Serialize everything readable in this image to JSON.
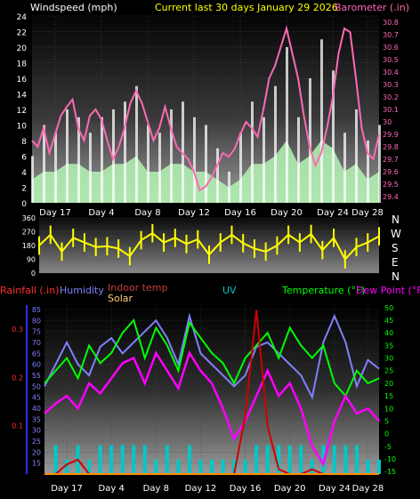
{
  "panels": {
    "wind": {
      "header_left": "Windspeed (mph)",
      "header_center": "Current last 30 days January 29 2026",
      "header_right": "Barometer (.in)",
      "colors": {
        "left": "#ffffff",
        "center": "#ffff00",
        "right": "#ff69b4",
        "gust": "#ffffff",
        "avg": "#b4f5b4",
        "baro": "#ff69b4"
      }
    },
    "direction": {
      "compass": [
        "N",
        "W",
        "S",
        "E",
        "N"
      ],
      "color": "#ffff00"
    },
    "multi": {
      "header_rain": "Rainfall (.in)",
      "header_humidity": "Humidity",
      "header_indoor": "Indoor temp",
      "header_solar": "Solar",
      "header_uv": "UV",
      "header_temp": "Temperature (°F)",
      "header_dew": "Dew Point (°F)",
      "colors": {
        "rain": "#ff3030",
        "humidity": "#8080ff",
        "indoor": "#c83c3c",
        "solar": "#ffd080",
        "uv": "#00c8c8",
        "temp": "#00ff00",
        "dew": "#ff00ff",
        "rainline": "#d00000"
      }
    }
  },
  "chart_data": [
    {
      "type": "area",
      "title": "Current last 30 days January 29 2026",
      "ylabel": "Windspeed (mph)",
      "y2label": "Barometer (.in)",
      "x_ticks": [
        "Day 17",
        "Day 4",
        "Day 8",
        "Day 12",
        "Day 16",
        "Day 20",
        "Day 24",
        "Day 28"
      ],
      "xlim": [
        0,
        30
      ],
      "ylim": [
        0,
        24
      ],
      "yticks": [
        0,
        2,
        4,
        6,
        8,
        10,
        12,
        14,
        16,
        18,
        20,
        22,
        24
      ],
      "y2lim": [
        29.35,
        30.85
      ],
      "y2ticks": [
        29.4,
        29.5,
        29.6,
        29.7,
        29.8,
        29.9,
        30.0,
        30.1,
        30.2,
        30.3,
        30.4,
        30.5,
        30.6,
        30.7,
        30.8
      ],
      "y2tick_labels": [
        "29.4",
        "29.5",
        "29.6",
        "29.7",
        "29.8",
        "29.9",
        "30",
        "30.1",
        "30.2",
        "30.3",
        "30.4",
        "30.5",
        "30.6",
        "30.7",
        "30.8"
      ],
      "series": [
        {
          "name": "Gust",
          "x": [
            0,
            1,
            2,
            3,
            4,
            5,
            6,
            7,
            8,
            9,
            10,
            11,
            12,
            13,
            14,
            15,
            16,
            17,
            18,
            19,
            20,
            21,
            22,
            23,
            24,
            25,
            26,
            27,
            28,
            29,
            30
          ],
          "y": [
            6,
            10,
            9,
            12,
            11,
            9,
            11,
            12,
            13,
            15,
            10,
            9,
            12,
            13,
            11,
            10,
            7,
            4,
            9,
            13,
            11,
            15,
            20,
            11,
            16,
            21,
            17,
            9,
            12,
            8,
            10
          ]
        },
        {
          "name": "Average",
          "x": [
            0,
            1,
            2,
            3,
            4,
            5,
            6,
            7,
            8,
            9,
            10,
            11,
            12,
            13,
            14,
            15,
            16,
            17,
            18,
            19,
            20,
            21,
            22,
            23,
            24,
            25,
            26,
            27,
            28,
            29,
            30
          ],
          "y": [
            3,
            4,
            4,
            5,
            5,
            4,
            4,
            5,
            5,
            6,
            4,
            4,
            5,
            5,
            4,
            4,
            3,
            2,
            3,
            5,
            5,
            6,
            8,
            5,
            6,
            8,
            7,
            4,
            5,
            3,
            4
          ]
        },
        {
          "name": "Barometer",
          "x": [
            0,
            0.5,
            1,
            1.5,
            2,
            2.5,
            3,
            3.5,
            4,
            4.5,
            5,
            5.5,
            6,
            6.5,
            7,
            7.5,
            8,
            8.5,
            9,
            9.5,
            10,
            10.5,
            11,
            11.5,
            12,
            12.5,
            13,
            13.5,
            14,
            14.5,
            15,
            15.5,
            16,
            16.5,
            17,
            17.5,
            18,
            18.5,
            19,
            19.5,
            20,
            20.5,
            21,
            21.5,
            22,
            22.5,
            23,
            23.5,
            24,
            24.5,
            25,
            25.5,
            26,
            26.5,
            27,
            27.5,
            28,
            28.5,
            29,
            29.5,
            30
          ],
          "y": [
            29.85,
            29.8,
            29.95,
            29.75,
            29.9,
            30.05,
            30.12,
            30.18,
            29.95,
            29.85,
            30.05,
            30.1,
            30.02,
            29.85,
            29.7,
            29.8,
            29.95,
            30.15,
            30.25,
            30.15,
            30.0,
            29.85,
            29.95,
            30.12,
            29.95,
            29.8,
            29.75,
            29.7,
            29.6,
            29.45,
            29.48,
            29.55,
            29.65,
            29.75,
            29.72,
            29.78,
            29.9,
            30.0,
            29.95,
            29.88,
            30.1,
            30.35,
            30.45,
            30.6,
            30.75,
            30.55,
            30.35,
            30.05,
            29.8,
            29.65,
            29.75,
            29.95,
            30.2,
            30.55,
            30.75,
            30.72,
            30.35,
            29.95,
            29.75,
            29.7,
            29.9
          ]
        }
      ]
    },
    {
      "type": "line",
      "title": "",
      "ylabel": "",
      "ylim": [
        0,
        360
      ],
      "yticks": [
        0,
        90,
        180,
        270,
        360
      ],
      "ytick_labels": [
        "0",
        "90",
        "180",
        "270",
        "360"
      ],
      "xlim": [
        0,
        30
      ],
      "series": [
        {
          "name": "Wind direction",
          "x": [
            0,
            1,
            2,
            3,
            4,
            5,
            6,
            7,
            8,
            9,
            10,
            11,
            12,
            13,
            14,
            15,
            16,
            17,
            18,
            19,
            20,
            21,
            22,
            23,
            24,
            25,
            26,
            27,
            28,
            29,
            30
          ],
          "y": [
            180,
            250,
            140,
            230,
            200,
            170,
            175,
            160,
            110,
            215,
            260,
            200,
            230,
            190,
            220,
            120,
            200,
            250,
            195,
            160,
            140,
            180,
            250,
            200,
            255,
            150,
            230,
            90,
            170,
            200,
            240
          ]
        }
      ]
    },
    {
      "type": "line",
      "title": "",
      "xlabel": "",
      "x_ticks": [
        "Day 17",
        "Day 4",
        "Day 8",
        "Day 12",
        "Day 16",
        "Day 20",
        "Day 24",
        "Day 28"
      ],
      "xlim": [
        0,
        30
      ],
      "y_rain": {
        "ylim": [
          0,
          0.35
        ],
        "ticks": [
          0.1,
          0.2,
          0.3
        ],
        "tick_labels": [
          "0.1",
          "0.2",
          "0.3"
        ]
      },
      "y_humidity": {
        "ylim": [
          10,
          87
        ],
        "ticks": [
          15,
          20,
          25,
          30,
          35,
          40,
          45,
          50,
          55,
          60,
          65,
          70,
          75,
          80,
          85
        ]
      },
      "y_temp": {
        "ylim": [
          -16,
          51
        ],
        "ticks": [
          -15,
          -10,
          -5,
          0,
          5,
          10,
          15,
          20,
          25,
          30,
          35,
          40,
          45,
          50
        ]
      },
      "series": [
        {
          "name": "Rainfall",
          "x": [
            0,
            1,
            2,
            3,
            4,
            5,
            6,
            7,
            8,
            9,
            10,
            11,
            12,
            13,
            14,
            15,
            16,
            17,
            18,
            19,
            20,
            21,
            22,
            23,
            24,
            25,
            26,
            27,
            28,
            29,
            30
          ],
          "y": [
            0,
            0,
            0.02,
            0.03,
            0,
            0,
            0,
            0,
            0,
            0,
            0,
            0,
            0,
            0,
            0,
            0,
            0,
            0,
            0.12,
            0.34,
            0.1,
            0.01,
            0,
            0,
            0.01,
            0,
            0,
            0,
            0,
            0,
            0
          ]
        },
        {
          "name": "Humidity",
          "x": [
            0,
            1,
            2,
            3,
            4,
            5,
            6,
            7,
            8,
            9,
            10,
            11,
            12,
            13,
            14,
            15,
            16,
            17,
            18,
            19,
            20,
            21,
            22,
            23,
            24,
            25,
            26,
            27,
            28,
            29,
            30
          ],
          "y": [
            50,
            60,
            70,
            60,
            55,
            68,
            72,
            65,
            70,
            75,
            80,
            72,
            60,
            82,
            65,
            60,
            55,
            50,
            55,
            68,
            70,
            65,
            60,
            55,
            45,
            70,
            82,
            70,
            50,
            62,
            58
          ]
        },
        {
          "name": "Indoor temp",
          "x": [
            0,
            30
          ],
          "y": [
            null,
            null
          ]
        },
        {
          "name": "Solar",
          "x": [
            0,
            30
          ],
          "y": [
            null,
            null
          ]
        },
        {
          "name": "UV",
          "x": [
            0,
            1,
            2,
            3,
            4,
            5,
            6,
            7,
            8,
            9,
            10,
            11,
            12,
            13,
            14,
            15,
            16,
            17,
            18,
            19,
            20,
            21,
            22,
            23,
            24,
            25,
            26,
            27,
            28,
            29,
            30
          ],
          "y": [
            0,
            2,
            1,
            2,
            1,
            2,
            2,
            2,
            2,
            2,
            1,
            2,
            1,
            2,
            1,
            1,
            1,
            1,
            1,
            2,
            2,
            2,
            2,
            2,
            1,
            2,
            2,
            2,
            2,
            1,
            1
          ]
        },
        {
          "name": "Temperature",
          "x": [
            0,
            1,
            2,
            3,
            4,
            5,
            6,
            7,
            8,
            9,
            10,
            11,
            12,
            13,
            14,
            15,
            16,
            17,
            18,
            19,
            20,
            21,
            22,
            23,
            24,
            25,
            26,
            27,
            28,
            29,
            30
          ],
          "y": [
            20,
            25,
            30,
            22,
            35,
            28,
            32,
            40,
            45,
            30,
            42,
            35,
            25,
            44,
            38,
            32,
            28,
            20,
            30,
            35,
            40,
            30,
            42,
            35,
            30,
            35,
            20,
            15,
            25,
            20,
            22
          ]
        },
        {
          "name": "Dew Point",
          "x": [
            0,
            1,
            2,
            3,
            4,
            5,
            6,
            7,
            8,
            9,
            10,
            11,
            12,
            13,
            14,
            15,
            16,
            17,
            18,
            19,
            20,
            21,
            22,
            23,
            24,
            25,
            26,
            27,
            28,
            29,
            30
          ],
          "y": [
            8,
            12,
            15,
            10,
            20,
            16,
            22,
            28,
            30,
            20,
            32,
            25,
            18,
            32,
            25,
            20,
            10,
            -2,
            5,
            15,
            25,
            15,
            20,
            10,
            -5,
            -12,
            5,
            15,
            8,
            10,
            5
          ]
        }
      ]
    }
  ]
}
